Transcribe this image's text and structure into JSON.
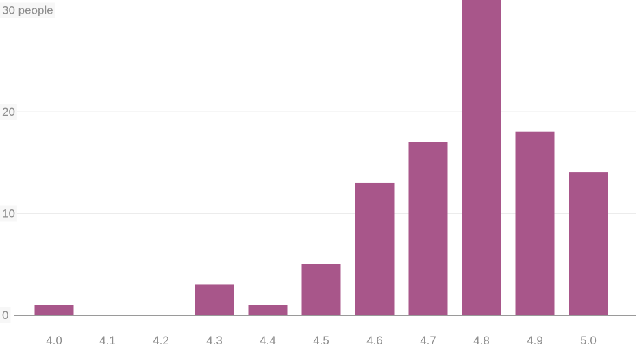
{
  "chart_data": {
    "type": "bar",
    "categories": [
      "4.0",
      "4.1",
      "4.2",
      "4.3",
      "4.4",
      "4.5",
      "4.6",
      "4.7",
      "4.8",
      "4.9",
      "5.0"
    ],
    "values": [
      1,
      0,
      0,
      3,
      1,
      5,
      13,
      17,
      31,
      18,
      14
    ],
    "y_ticks": [
      {
        "value": 0,
        "label": "0"
      },
      {
        "value": 10,
        "label": "10"
      },
      {
        "value": 20,
        "label": "20"
      },
      {
        "value": 30,
        "label": "30 people"
      }
    ],
    "ylim": [
      0,
      31
    ],
    "grid": true,
    "bar_color": "#a8568a",
    "title": "",
    "xlabel": "",
    "ylabel": ""
  }
}
